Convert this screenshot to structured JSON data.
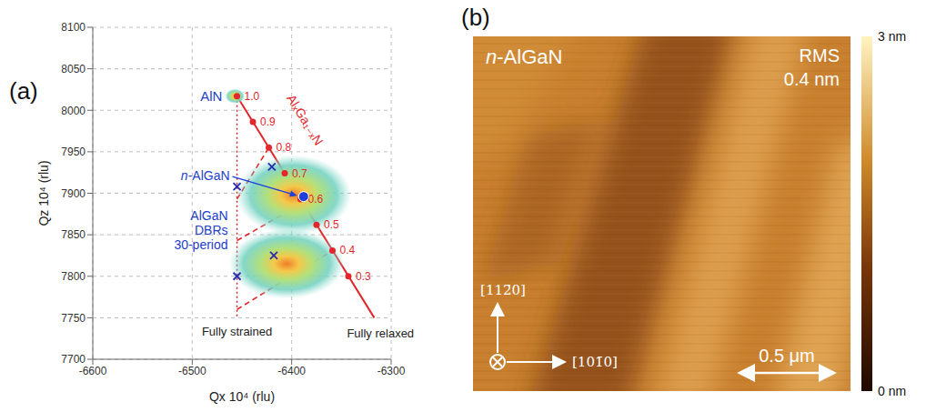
{
  "chart_data": {
    "type": "scatter",
    "panel": "(a)",
    "x_label": "Qx 10⁴ (rlu)",
    "y_label": "Qz 10⁴ (rlu)",
    "xlim": [
      -6600,
      -6300
    ],
    "xticks": [
      -6600,
      -6500,
      -6400,
      -6300
    ],
    "ylim": [
      7700,
      8100
    ],
    "yticks": [
      7700,
      7750,
      7800,
      7850,
      7900,
      7950,
      8000,
      8050,
      8100
    ],
    "grid": true,
    "intensity_peaks": [
      {
        "x": -6457,
        "y": 8017,
        "x_spread": 10,
        "y_spread": 9
      },
      {
        "x": -6398,
        "y": 7898,
        "x_spread": 58,
        "y_spread": 48
      },
      {
        "x": -6405,
        "y": 7815,
        "x_spread": 58,
        "y_spread": 42
      }
    ],
    "peak_label": "AlN",
    "relaxation_line": {
      "label": "AlₓGa₁₋ₓN",
      "end_label": "Fully relaxed",
      "color": "#e3262b",
      "x": [
        -6455,
        -6317
      ],
      "y": [
        8017,
        7750
      ]
    },
    "compositions": {
      "color": "#e3262b",
      "x": [
        -6455,
        -6439,
        -6423,
        -6407,
        -6391,
        -6375,
        -6359,
        -6343
      ],
      "y": [
        8017,
        7986,
        7955,
        7924,
        7893,
        7862,
        7831,
        7800
      ],
      "value_labels": [
        "1.0",
        "0.9",
        "0.8",
        "0.7",
        "0.6",
        "0.5",
        "0.4",
        "0.3"
      ]
    },
    "strained_line": {
      "label": "Fully strained",
      "color": "#c42a2a",
      "line_style": "dotted",
      "x": [
        -6455,
        -6455
      ],
      "y": [
        8017,
        7750
      ]
    },
    "dbr_lines": {
      "color": "#e3262b",
      "line_style": "dashed",
      "segments": [
        {
          "x": [
            -6455,
            -6423
          ],
          "y": [
            7893,
            7955
          ]
        },
        {
          "x": [
            -6455,
            -6385
          ],
          "y": [
            7843,
            7891
          ]
        },
        {
          "x": [
            -6455,
            -6359
          ],
          "y": [
            7760,
            7831
          ]
        }
      ]
    },
    "dbr_label": "AlGaN DBRs 30-period",
    "dbr_markers": {
      "color": "#2b2bb0",
      "marker": "x",
      "x": [
        -6455,
        -6420,
        -6455,
        -6418
      ],
      "y": [
        7908,
        7932,
        7800,
        7825
      ]
    },
    "n_algan": {
      "label": "n-AlGaN",
      "color": "#1f3fd8",
      "marker": "circle",
      "x": -6388,
      "y": 7896
    }
  },
  "afm_image": {
    "panel": "(b)",
    "label": "n-AlGaN",
    "rms_label": "RMS",
    "rms": "0.4 nm",
    "scan_size": 2,
    "scale_bar": {
      "value": 0.5,
      "label": "0.5 μm"
    },
    "directions": {
      "up": "[112̄0]",
      "right": "[101̄0]"
    },
    "color_bar": {
      "range": [
        0,
        3
      ],
      "ticks": [
        {
          "value": 0,
          "label": "0 nm"
        },
        {
          "value": 3,
          "label": "3 nm"
        }
      ]
    }
  }
}
